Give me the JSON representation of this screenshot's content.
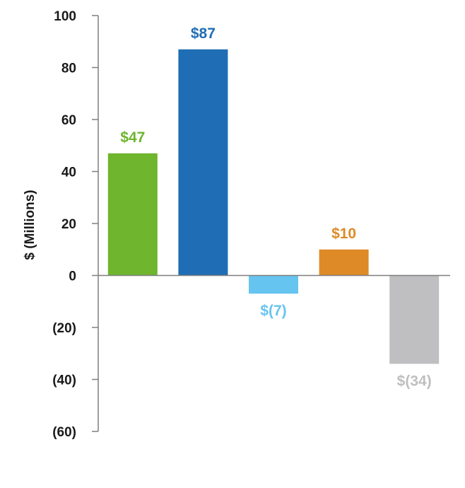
{
  "chart_data": {
    "type": "bar",
    "title": "",
    "xlabel": "",
    "ylabel": "$ (Millions)",
    "ylim": [
      -60,
      100
    ],
    "yticks": [
      100,
      80,
      60,
      40,
      20,
      0,
      -20,
      -40,
      -60
    ],
    "ytick_labels": [
      "100",
      "80",
      "60",
      "40",
      "20",
      "0",
      "(20)",
      "(40)",
      "(60)"
    ],
    "categories": [
      "",
      "",
      "",
      "",
      ""
    ],
    "values": [
      47,
      87,
      -7,
      10,
      -34
    ],
    "data_labels": [
      "$47",
      "$87",
      "$(7)",
      "$10",
      "$(34)"
    ],
    "colors": [
      "#6fb52e",
      "#1f6db5",
      "#66c4f0",
      "#de8a26",
      "#bfbfc1"
    ],
    "label_colors": [
      "#6fb52e",
      "#1f6db5",
      "#66c4f0",
      "#de8a26",
      "#bfbfc1"
    ]
  }
}
